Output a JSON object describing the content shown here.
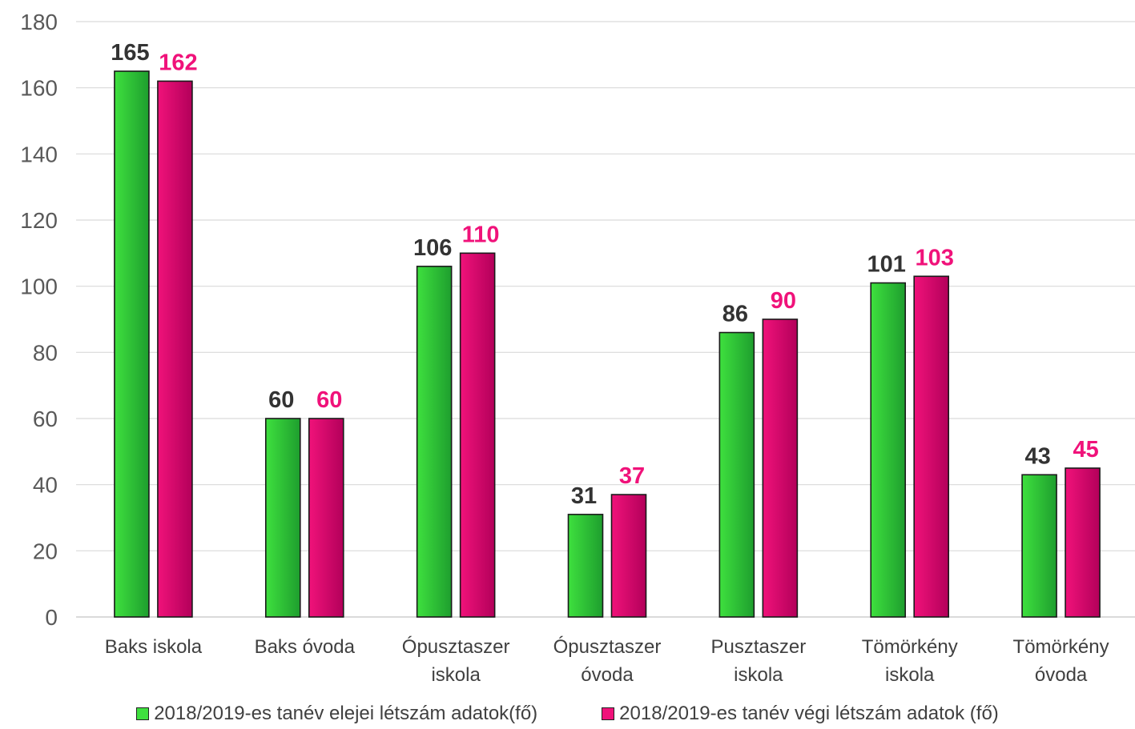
{
  "colors": {
    "series1": "#3ee03e",
    "series1_dark": "#1e9e2e",
    "series2": "#f0127a",
    "series2_dark": "#b3005a",
    "label1": "#333333",
    "label2": "#f0127a",
    "axis_text": "#595959",
    "grid": "#d9d9d9"
  },
  "chart_data": {
    "type": "bar",
    "ylim": [
      0,
      180
    ],
    "yticks": [
      0,
      20,
      40,
      60,
      80,
      100,
      120,
      140,
      160,
      180
    ],
    "grid": true,
    "legend_position": "bottom",
    "categories": [
      [
        "Baks iskola"
      ],
      [
        "Baks óvoda"
      ],
      [
        "Ópusztaszer",
        "iskola"
      ],
      [
        "Ópusztaszer",
        "óvoda"
      ],
      [
        "Pusztaszer",
        "iskola"
      ],
      [
        "Tömörkény",
        "iskola"
      ],
      [
        "Tömörkény",
        "óvoda"
      ]
    ],
    "series": [
      {
        "name": "2018/2019-es tanév elejei létszám adatok(fő)",
        "values": [
          165,
          60,
          106,
          31,
          86,
          101,
          43
        ]
      },
      {
        "name": "2018/2019-es tanév végi létszám adatok (fő)",
        "values": [
          162,
          60,
          110,
          37,
          90,
          103,
          45
        ]
      }
    ]
  }
}
